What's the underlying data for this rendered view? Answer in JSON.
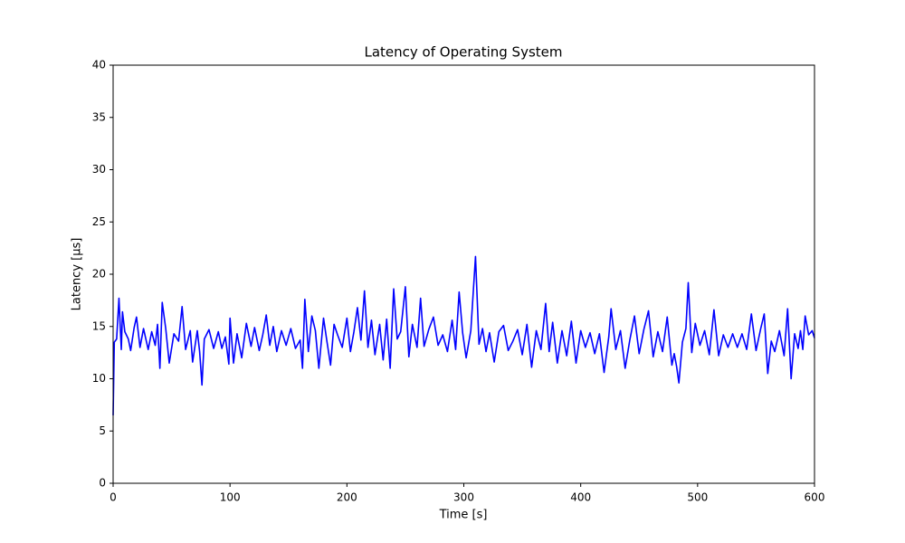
{
  "chart_data": {
    "type": "line",
    "title": "Latency of Operating System",
    "xlabel": "Time [s]",
    "ylabel": "Latency [μs]",
    "x": [
      0,
      1,
      3,
      5,
      7,
      8,
      10,
      13,
      15,
      18,
      20,
      23,
      26,
      30,
      33,
      36,
      38,
      40,
      42,
      45,
      48,
      52,
      56,
      59,
      62,
      66,
      68,
      72,
      74,
      76,
      78,
      82,
      86,
      90,
      93,
      96,
      99,
      100,
      103,
      106,
      110,
      114,
      118,
      121,
      125,
      128,
      131,
      134,
      137,
      140,
      144,
      148,
      152,
      156,
      160,
      162,
      164,
      167,
      170,
      173,
      176,
      180,
      183,
      186,
      189,
      192,
      196,
      200,
      203,
      206,
      209,
      212,
      215,
      218,
      221,
      224,
      228,
      231,
      234,
      237,
      240,
      243,
      246,
      250,
      253,
      256,
      260,
      263,
      266,
      270,
      274,
      278,
      282,
      286,
      290,
      293,
      296,
      299,
      302,
      306,
      310,
      313,
      316,
      319,
      322,
      326,
      330,
      334,
      338,
      342,
      346,
      350,
      354,
      358,
      362,
      366,
      370,
      373,
      376,
      380,
      384,
      388,
      392,
      396,
      400,
      404,
      408,
      412,
      416,
      420,
      424,
      426,
      430,
      434,
      438,
      442,
      446,
      450,
      454,
      458,
      462,
      466,
      470,
      474,
      478,
      480,
      482,
      484,
      487,
      490,
      492,
      495,
      498,
      502,
      506,
      510,
      514,
      518,
      522,
      526,
      530,
      534,
      538,
      542,
      546,
      550,
      554,
      557,
      560,
      563,
      566,
      570,
      574,
      577,
      580,
      583,
      586,
      588,
      590,
      592,
      595,
      598,
      600
    ],
    "series": [
      {
        "name": "Latency",
        "color": "#0000ff",
        "values": [
          6.5,
          13.5,
          13.8,
          17.7,
          12.8,
          16.4,
          14.5,
          13.8,
          12.7,
          14.9,
          15.9,
          13.0,
          14.8,
          12.8,
          14.5,
          13.2,
          15.2,
          11.0,
          17.3,
          14.8,
          11.5,
          14.3,
          13.6,
          16.9,
          12.8,
          14.6,
          11.6,
          14.6,
          12.6,
          9.4,
          13.8,
          14.7,
          12.9,
          14.5,
          12.9,
          14.0,
          11.4,
          15.8,
          11.5,
          14.3,
          12.0,
          15.3,
          13.1,
          14.9,
          12.7,
          14.2,
          16.1,
          13.2,
          15.0,
          12.6,
          14.6,
          13.2,
          14.8,
          12.9,
          13.7,
          11.0,
          17.6,
          12.6,
          16.0,
          14.6,
          11.0,
          15.8,
          13.5,
          11.3,
          15.2,
          14.2,
          13.0,
          15.8,
          12.6,
          14.5,
          16.8,
          13.7,
          18.4,
          13.0,
          15.6,
          12.3,
          15.2,
          11.8,
          15.7,
          11.0,
          18.6,
          13.8,
          14.5,
          18.8,
          12.1,
          15.2,
          13.0,
          17.7,
          13.1,
          14.7,
          15.9,
          13.2,
          14.2,
          12.6,
          15.6,
          12.8,
          18.3,
          14.4,
          12.0,
          14.6,
          21.7,
          13.3,
          14.8,
          12.6,
          14.4,
          11.6,
          14.5,
          15.1,
          12.7,
          13.6,
          14.7,
          12.3,
          15.2,
          11.1,
          14.6,
          12.8,
          17.2,
          12.6,
          15.4,
          11.5,
          14.6,
          12.2,
          15.5,
          11.5,
          14.6,
          13.0,
          14.4,
          12.4,
          14.3,
          10.6,
          14.0,
          16.7,
          12.8,
          14.6,
          11.0,
          13.7,
          16.0,
          12.4,
          14.7,
          16.5,
          12.1,
          14.5,
          12.6,
          15.9,
          11.3,
          12.4,
          11.2,
          9.6,
          13.5,
          14.8,
          19.2,
          12.5,
          15.3,
          13.2,
          14.6,
          12.3,
          16.6,
          12.2,
          14.2,
          13.0,
          14.3,
          13.0,
          14.3,
          12.8,
          16.2,
          12.7,
          14.8,
          16.2,
          10.5,
          13.6,
          12.6,
          14.6,
          12.2,
          16.7,
          10.0,
          14.3,
          12.9,
          14.6,
          12.8,
          16.0,
          14.2,
          14.6,
          13.9
        ]
      }
    ],
    "xlim": [
      0,
      600
    ],
    "xticks": [
      0,
      100,
      200,
      300,
      400,
      500,
      600
    ],
    "ylim": [
      0,
      40
    ],
    "yticks": [
      0,
      5,
      10,
      15,
      20,
      25,
      30,
      35,
      40
    ],
    "grid": false
  }
}
